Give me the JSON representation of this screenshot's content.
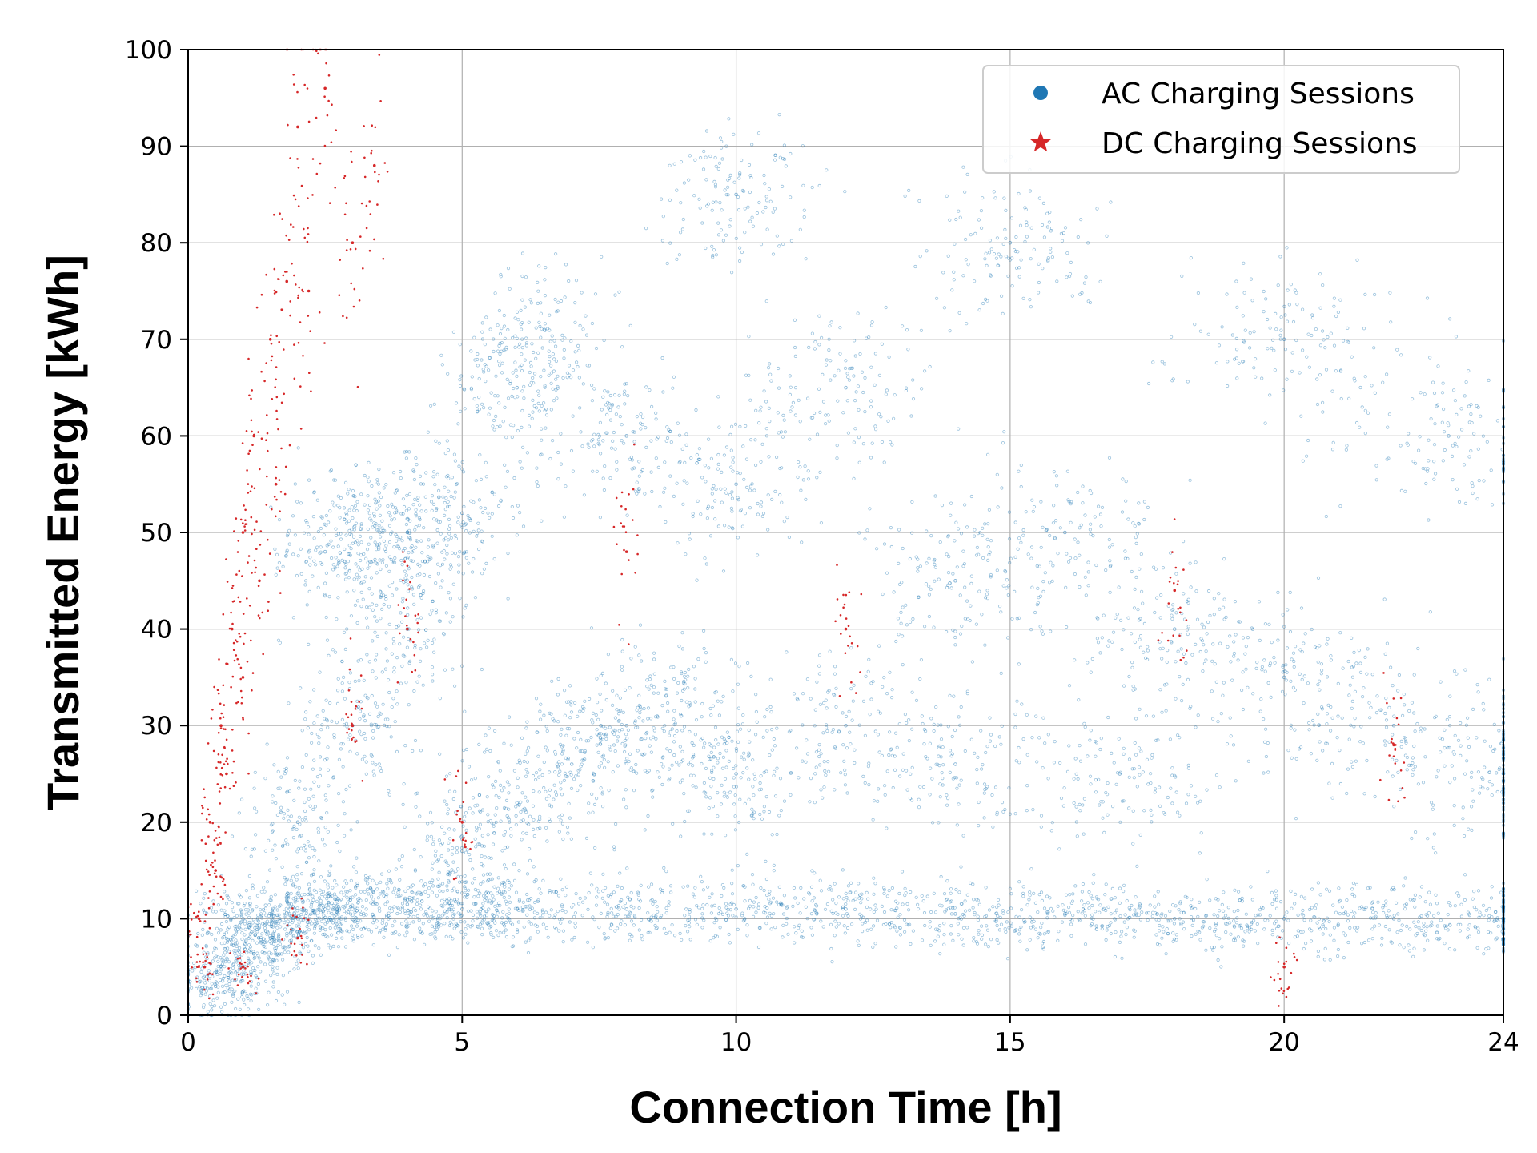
{
  "chart_data": {
    "type": "scatter",
    "xlabel": "Connection Time [h]",
    "ylabel": "Transmitted Energy [kWh]",
    "xlim": [
      0,
      24
    ],
    "ylim": [
      0,
      100
    ],
    "xticks": [
      0,
      5,
      10,
      15,
      20,
      24
    ],
    "yticks": [
      0,
      10,
      20,
      30,
      40,
      50,
      60,
      70,
      80,
      90,
      100
    ],
    "grid": true,
    "legend_position": "top-right",
    "series": [
      {
        "name": "AC Charging Sessions",
        "marker": "circle",
        "color": "#1f77b4",
        "points": [
          [
            0.5,
            3
          ],
          [
            1.0,
            5
          ],
          [
            1.5,
            8
          ],
          [
            2.0,
            10
          ],
          [
            2.5,
            11
          ],
          [
            3.0,
            11
          ],
          [
            4.0,
            11.5
          ],
          [
            5.0,
            11
          ],
          [
            6.0,
            11
          ],
          [
            8.0,
            11
          ],
          [
            10.0,
            11
          ],
          [
            12.0,
            11
          ],
          [
            14.0,
            10.5
          ],
          [
            16.0,
            10.5
          ],
          [
            18.0,
            10
          ],
          [
            20.0,
            10
          ],
          [
            22.0,
            10
          ],
          [
            24.0,
            10
          ],
          [
            1.0,
            10
          ],
          [
            2.0,
            20
          ],
          [
            3.0,
            30
          ],
          [
            4.0,
            40
          ],
          [
            5.0,
            52
          ],
          [
            6.0,
            65
          ],
          [
            6.5,
            71
          ],
          [
            2.5,
            48
          ],
          [
            3.5,
            50
          ],
          [
            4.0,
            50
          ],
          [
            5.0,
            17
          ],
          [
            6.0,
            22
          ],
          [
            7.0,
            26
          ],
          [
            8.0,
            30
          ],
          [
            9.0,
            31
          ],
          [
            8.0,
            60
          ],
          [
            10.0,
            55
          ],
          [
            12.0,
            65
          ],
          [
            14.0,
            45
          ],
          [
            16.0,
            50
          ],
          [
            18.0,
            40
          ],
          [
            20.0,
            35
          ],
          [
            22.0,
            30
          ],
          [
            24.0,
            25
          ],
          [
            10.0,
            25
          ],
          [
            12.0,
            30
          ],
          [
            14.0,
            26
          ],
          [
            17.0,
            25
          ],
          [
            10.0,
            85
          ],
          [
            15.0,
            80
          ],
          [
            20.0,
            70
          ],
          [
            23.0,
            60
          ]
        ]
      },
      {
        "name": "DC Charging Sessions",
        "marker": "star",
        "color": "#d62728",
        "points": [
          [
            0.2,
            10
          ],
          [
            0.4,
            20
          ],
          [
            0.6,
            30
          ],
          [
            0.8,
            40
          ],
          [
            1.0,
            50
          ],
          [
            1.2,
            60
          ],
          [
            1.5,
            70
          ],
          [
            1.8,
            76
          ],
          [
            2.0,
            92
          ],
          [
            2.5,
            96
          ],
          [
            0.3,
            5
          ],
          [
            0.5,
            15
          ],
          [
            0.7,
            25
          ],
          [
            1.0,
            35
          ],
          [
            1.3,
            45
          ],
          [
            1.6,
            55
          ],
          [
            2.2,
            75
          ],
          [
            3.0,
            80
          ],
          [
            3.4,
            88
          ],
          [
            1.0,
            5
          ],
          [
            2.0,
            8
          ],
          [
            3.0,
            30
          ],
          [
            4.0,
            40
          ],
          [
            5.0,
            20
          ],
          [
            8.0,
            48
          ],
          [
            12.0,
            40
          ],
          [
            18.0,
            44
          ],
          [
            20.0,
            5
          ],
          [
            22.0,
            28
          ]
        ]
      }
    ]
  }
}
